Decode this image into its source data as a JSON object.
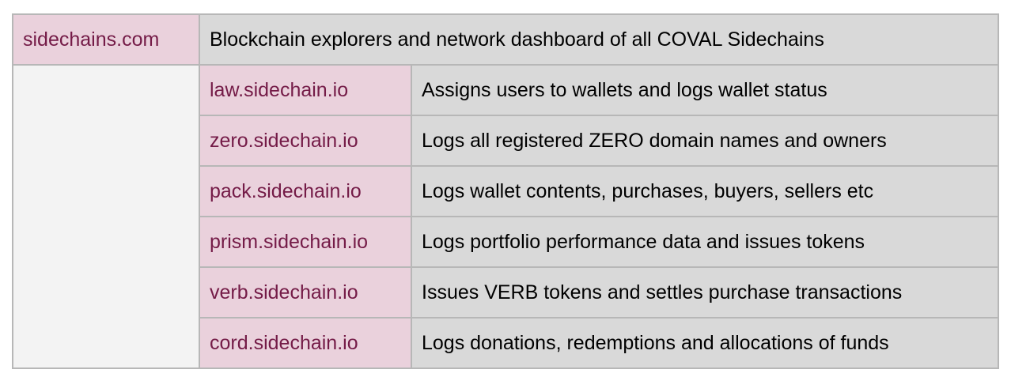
{
  "header": {
    "domain": "sidechains.com",
    "description": "Blockchain explorers and network dashboard of all COVAL Sidechains"
  },
  "rows": [
    {
      "domain": "law.sidechain.io",
      "description": "Assigns users to wallets and logs wallet status"
    },
    {
      "domain": "zero.sidechain.io",
      "description": "Logs all registered ZERO domain names and owners"
    },
    {
      "domain": "pack.sidechain.io",
      "description": "Logs wallet contents, purchases, buyers, sellers etc"
    },
    {
      "domain": "prism.sidechain.io",
      "description": "Logs portfolio performance data and issues tokens"
    },
    {
      "domain": "verb.sidechain.io",
      "description": "Issues VERB tokens and settles purchase transactions"
    },
    {
      "domain": "cord.sidechain.io",
      "description": "Logs donations, redemptions and allocations of funds"
    }
  ],
  "colors": {
    "domain_bg": "#ead1dc",
    "domain_text": "#741b47",
    "desc_bg": "#d9d9d9",
    "empty_bg": "#f3f3f3",
    "border": "#b7b7b7"
  }
}
